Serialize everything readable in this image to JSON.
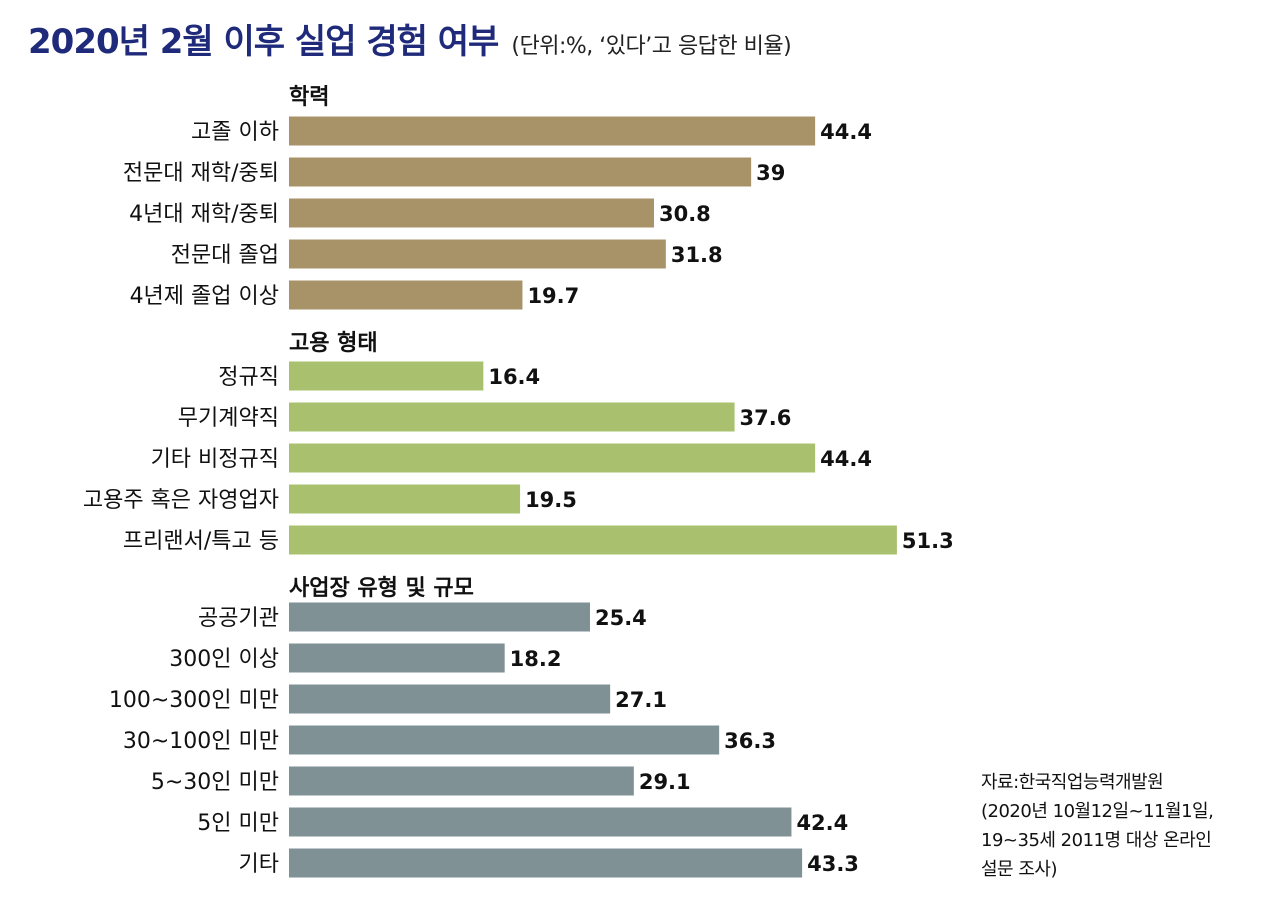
{
  "title": "2020년 2월 이후 실업 경험 여부",
  "subtitle": "(단위:%, ‘있다’고 응답한 비율)",
  "source_lines": [
    "자료:한국직업능력개발원",
    "(2020년 10월12일~11월1일,",
    "19~35세 2011명 대상 온라인",
    "설문 조사)"
  ],
  "colors": {
    "title": "#1f2a7a",
    "education": "#a89368",
    "employment": "#a9c16e",
    "workplace": "#7f9194"
  },
  "chart_data": {
    "type": "bar",
    "orientation": "horizontal",
    "title": "2020년 2월 이후 실업 경험 여부",
    "unit": "%",
    "groups": [
      {
        "name": "학력",
        "color": "#a89368",
        "categories": [
          "고졸 이하",
          "전문대 재학/중퇴",
          "4년대 재학/중퇴",
          "전문대 졸업",
          "4년제 졸업 이상"
        ],
        "values": [
          44.4,
          39,
          30.8,
          31.8,
          19.7
        ],
        "value_labels": [
          "44.4",
          "39",
          "30.8",
          "31.8",
          "19.7"
        ]
      },
      {
        "name": "고용 형태",
        "color": "#a9c16e",
        "categories": [
          "정규직",
          "무기계약직",
          "기타 비정규직",
          "고용주 혹은 자영업자",
          "프리랜서/특고 등"
        ],
        "values": [
          16.4,
          37.6,
          44.4,
          19.5,
          51.3
        ],
        "value_labels": [
          "16.4",
          "37.6",
          "44.4",
          "19.5",
          "51.3"
        ]
      },
      {
        "name": "사업장 유형 및 규모",
        "color": "#7f9194",
        "categories": [
          "공공기관",
          "300인 이상",
          "100~300인 미만",
          "30~100인 미만",
          "5~30인 미만",
          "5인 미만",
          "기타"
        ],
        "values": [
          25.4,
          18.2,
          27.1,
          36.3,
          29.1,
          42.4,
          43.3
        ],
        "value_labels": [
          "25.4",
          "18.2",
          "27.1",
          "36.3",
          "29.1",
          "42.4",
          "43.3"
        ]
      }
    ],
    "grid": false,
    "legend": "none"
  }
}
